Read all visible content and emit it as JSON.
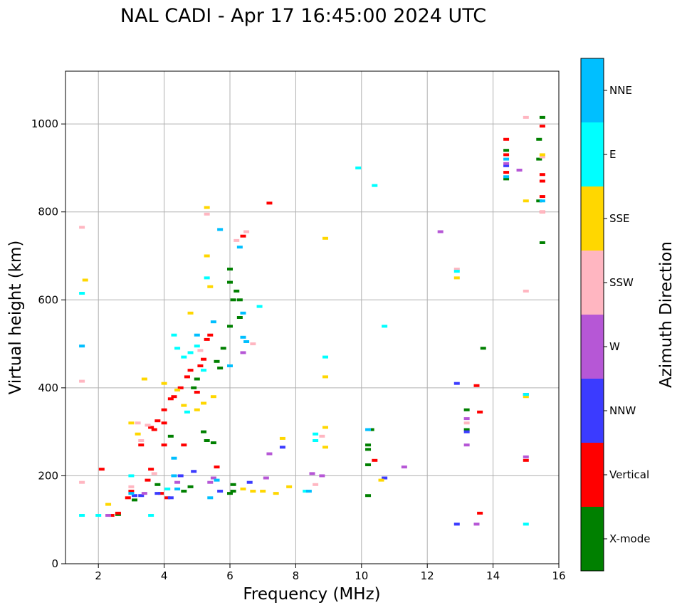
{
  "chart_data": {
    "type": "scatter",
    "title": "NAL CADI - Apr 17 16:45:00 2024 UTC",
    "xlabel": "Frequency (MHz)",
    "ylabel": "Virtual height (km)",
    "xlim": [
      1,
      16
    ],
    "ylim": [
      0,
      1120
    ],
    "xticks": [
      2,
      4,
      6,
      8,
      10,
      12,
      14,
      16
    ],
    "yticks": [
      0,
      200,
      400,
      600,
      800,
      1000
    ],
    "grid": true,
    "colorbar": {
      "label": "Azimuth Direction",
      "categories": [
        {
          "name": "X-mode",
          "color": "#008000"
        },
        {
          "name": "Vertical",
          "color": "#ff0000"
        },
        {
          "name": "NNW",
          "color": "#3b3bff"
        },
        {
          "name": "W",
          "color": "#b657d6"
        },
        {
          "name": "SSW",
          "color": "#ffb6c1"
        },
        {
          "name": "SSE",
          "color": "#ffd700"
        },
        {
          "name": "E",
          "color": "#00ffff"
        },
        {
          "name": "NNE",
          "color": "#00bfff"
        }
      ]
    },
    "series": [
      {
        "name": "X-mode",
        "points": [
          [
            2.6,
            112
          ],
          [
            3.1,
            145
          ],
          [
            3.8,
            180
          ],
          [
            4.2,
            290
          ],
          [
            4.6,
            165
          ],
          [
            4.8,
            175
          ],
          [
            4.9,
            400
          ],
          [
            5.0,
            420
          ],
          [
            5.2,
            300
          ],
          [
            5.3,
            280
          ],
          [
            5.5,
            275
          ],
          [
            5.6,
            460
          ],
          [
            5.7,
            445
          ],
          [
            5.8,
            490
          ],
          [
            6.0,
            640
          ],
          [
            6.0,
            670
          ],
          [
            6.1,
            600
          ],
          [
            6.2,
            620
          ],
          [
            6.3,
            560
          ],
          [
            6.3,
            600
          ],
          [
            6.0,
            540
          ],
          [
            6.0,
            160
          ],
          [
            6.1,
            165
          ],
          [
            6.1,
            180
          ],
          [
            10.2,
            270
          ],
          [
            10.2,
            260
          ],
          [
            10.3,
            305
          ],
          [
            10.2,
            155
          ],
          [
            10.2,
            225
          ],
          [
            13.2,
            350
          ],
          [
            13.2,
            305
          ],
          [
            13.7,
            490
          ],
          [
            14.4,
            940
          ],
          [
            15.4,
            965
          ],
          [
            15.4,
            920
          ],
          [
            15.5,
            730
          ],
          [
            15.5,
            1015
          ],
          [
            15.4,
            825
          ],
          [
            14.4,
            875
          ]
        ]
      },
      {
        "name": "Vertical",
        "points": [
          [
            2.1,
            215
          ],
          [
            2.4,
            110
          ],
          [
            2.6,
            115
          ],
          [
            2.9,
            150
          ],
          [
            3.0,
            165
          ],
          [
            3.3,
            270
          ],
          [
            3.5,
            190
          ],
          [
            3.6,
            215
          ],
          [
            3.6,
            310
          ],
          [
            3.7,
            305
          ],
          [
            3.8,
            325
          ],
          [
            3.9,
            160
          ],
          [
            4.0,
            270
          ],
          [
            4.0,
            320
          ],
          [
            4.0,
            350
          ],
          [
            4.1,
            150
          ],
          [
            4.2,
            375
          ],
          [
            4.3,
            380
          ],
          [
            4.5,
            400
          ],
          [
            4.6,
            270
          ],
          [
            4.7,
            425
          ],
          [
            4.8,
            440
          ],
          [
            5.0,
            390
          ],
          [
            5.1,
            450
          ],
          [
            5.2,
            465
          ],
          [
            5.3,
            510
          ],
          [
            5.4,
            520
          ],
          [
            5.6,
            220
          ],
          [
            6.4,
            745
          ],
          [
            7.2,
            820
          ],
          [
            10.4,
            235
          ],
          [
            13.5,
            405
          ],
          [
            13.6,
            345
          ],
          [
            13.6,
            115
          ],
          [
            14.4,
            965
          ],
          [
            14.4,
            930
          ],
          [
            14.4,
            890
          ],
          [
            15.0,
            235
          ],
          [
            15.5,
            885
          ],
          [
            15.5,
            835
          ],
          [
            15.5,
            995
          ],
          [
            15.5,
            800
          ],
          [
            15.5,
            870
          ]
        ]
      },
      {
        "name": "NNW",
        "points": [
          [
            3.1,
            155
          ],
          [
            3.3,
            155
          ],
          [
            3.8,
            160
          ],
          [
            4.2,
            150
          ],
          [
            4.5,
            200
          ],
          [
            4.9,
            210
          ],
          [
            5.7,
            165
          ],
          [
            6.6,
            185
          ],
          [
            7.6,
            265
          ],
          [
            10.7,
            195
          ],
          [
            12.9,
            410
          ],
          [
            12.9,
            90
          ],
          [
            13.2,
            300
          ],
          [
            15.0,
            385
          ],
          [
            14.4,
            905
          ]
        ]
      },
      {
        "name": "W",
        "points": [
          [
            2.3,
            110
          ],
          [
            3.4,
            160
          ],
          [
            4.4,
            185
          ],
          [
            5.4,
            185
          ],
          [
            5.5,
            195
          ],
          [
            6.4,
            480
          ],
          [
            7.1,
            195
          ],
          [
            7.2,
            250
          ],
          [
            8.5,
            205
          ],
          [
            8.8,
            200
          ],
          [
            11.3,
            220
          ],
          [
            12.4,
            755
          ],
          [
            13.2,
            330
          ],
          [
            13.2,
            270
          ],
          [
            13.5,
            90
          ],
          [
            14.4,
            910
          ],
          [
            14.8,
            895
          ],
          [
            15.0,
            243
          ]
        ]
      },
      {
        "name": "SSW",
        "points": [
          [
            1.5,
            185
          ],
          [
            1.5,
            765
          ],
          [
            1.5,
            415
          ],
          [
            3.0,
            175
          ],
          [
            3.2,
            320
          ],
          [
            3.3,
            280
          ],
          [
            3.5,
            315
          ],
          [
            3.7,
            205
          ],
          [
            5.1,
            485
          ],
          [
            5.3,
            795
          ],
          [
            6.2,
            735
          ],
          [
            6.5,
            755
          ],
          [
            6.7,
            500
          ],
          [
            8.6,
            180
          ],
          [
            8.8,
            290
          ],
          [
            12.9,
            670
          ],
          [
            13.2,
            320
          ],
          [
            15.0,
            1015
          ],
          [
            15.0,
            620
          ],
          [
            15.5,
            925
          ],
          [
            15.5,
            800
          ]
        ]
      },
      {
        "name": "SSE",
        "points": [
          [
            1.6,
            645
          ],
          [
            2.3,
            135
          ],
          [
            3.0,
            320
          ],
          [
            3.2,
            295
          ],
          [
            3.4,
            420
          ],
          [
            4.0,
            410
          ],
          [
            4.4,
            395
          ],
          [
            4.6,
            360
          ],
          [
            4.8,
            570
          ],
          [
            5.0,
            350
          ],
          [
            5.2,
            365
          ],
          [
            5.3,
            810
          ],
          [
            5.3,
            700
          ],
          [
            5.5,
            380
          ],
          [
            5.4,
            630
          ],
          [
            6.4,
            170
          ],
          [
            6.7,
            165
          ],
          [
            7.0,
            165
          ],
          [
            7.4,
            160
          ],
          [
            7.6,
            285
          ],
          [
            7.8,
            175
          ],
          [
            8.9,
            425
          ],
          [
            8.9,
            310
          ],
          [
            8.9,
            265
          ],
          [
            8.9,
            740
          ],
          [
            10.6,
            190
          ],
          [
            12.9,
            650
          ],
          [
            15.0,
            825
          ],
          [
            15.0,
            380
          ],
          [
            15.5,
            930
          ]
        ]
      },
      {
        "name": "E",
        "points": [
          [
            1.5,
            110
          ],
          [
            1.5,
            615
          ],
          [
            2.0,
            110
          ],
          [
            3.0,
            200
          ],
          [
            3.6,
            110
          ],
          [
            4.1,
            170
          ],
          [
            4.3,
            520
          ],
          [
            4.4,
            490
          ],
          [
            4.6,
            470
          ],
          [
            4.7,
            345
          ],
          [
            4.8,
            480
          ],
          [
            5.0,
            495
          ],
          [
            5.2,
            440
          ],
          [
            5.3,
            650
          ],
          [
            6.9,
            585
          ],
          [
            8.3,
            165
          ],
          [
            8.6,
            295
          ],
          [
            8.6,
            280
          ],
          [
            8.9,
            470
          ],
          [
            9.9,
            900
          ],
          [
            10.4,
            860
          ],
          [
            10.7,
            540
          ],
          [
            12.9,
            665
          ],
          [
            15.0,
            90
          ],
          [
            15.0,
            385
          ]
        ]
      },
      {
        "name": "NNE",
        "points": [
          [
            1.5,
            495
          ],
          [
            3.0,
            160
          ],
          [
            4.3,
            240
          ],
          [
            4.3,
            200
          ],
          [
            4.4,
            170
          ],
          [
            5.0,
            520
          ],
          [
            5.4,
            150
          ],
          [
            5.5,
            550
          ],
          [
            5.6,
            190
          ],
          [
            5.7,
            760
          ],
          [
            6.0,
            450
          ],
          [
            6.3,
            720
          ],
          [
            6.4,
            570
          ],
          [
            6.4,
            515
          ],
          [
            6.5,
            505
          ],
          [
            8.4,
            165
          ],
          [
            10.2,
            305
          ],
          [
            14.4,
            880
          ],
          [
            14.4,
            920
          ],
          [
            15.5,
            825
          ]
        ]
      }
    ]
  }
}
